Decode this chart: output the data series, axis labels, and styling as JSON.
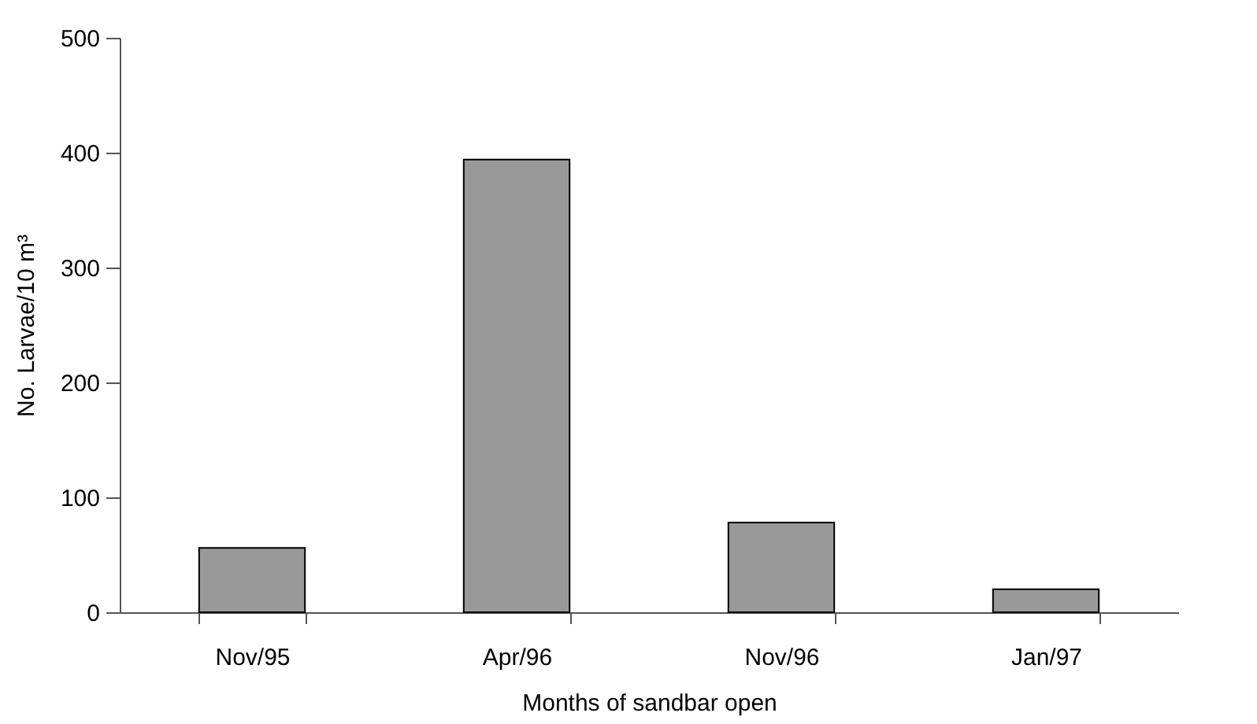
{
  "chart_data": {
    "type": "bar",
    "xlabel": "Months of sandbar open",
    "ylabel": "No. Larvae/10 m³",
    "categories": [
      "Nov/95",
      "Apr/96",
      "Nov/96",
      "Jan/97"
    ],
    "values": [
      56,
      394,
      78,
      20
    ],
    "color": "#999999",
    "ylim": [
      0,
      500
    ],
    "yticks": [
      0,
      100,
      200,
      300,
      400,
      500
    ],
    "grid": false
  }
}
